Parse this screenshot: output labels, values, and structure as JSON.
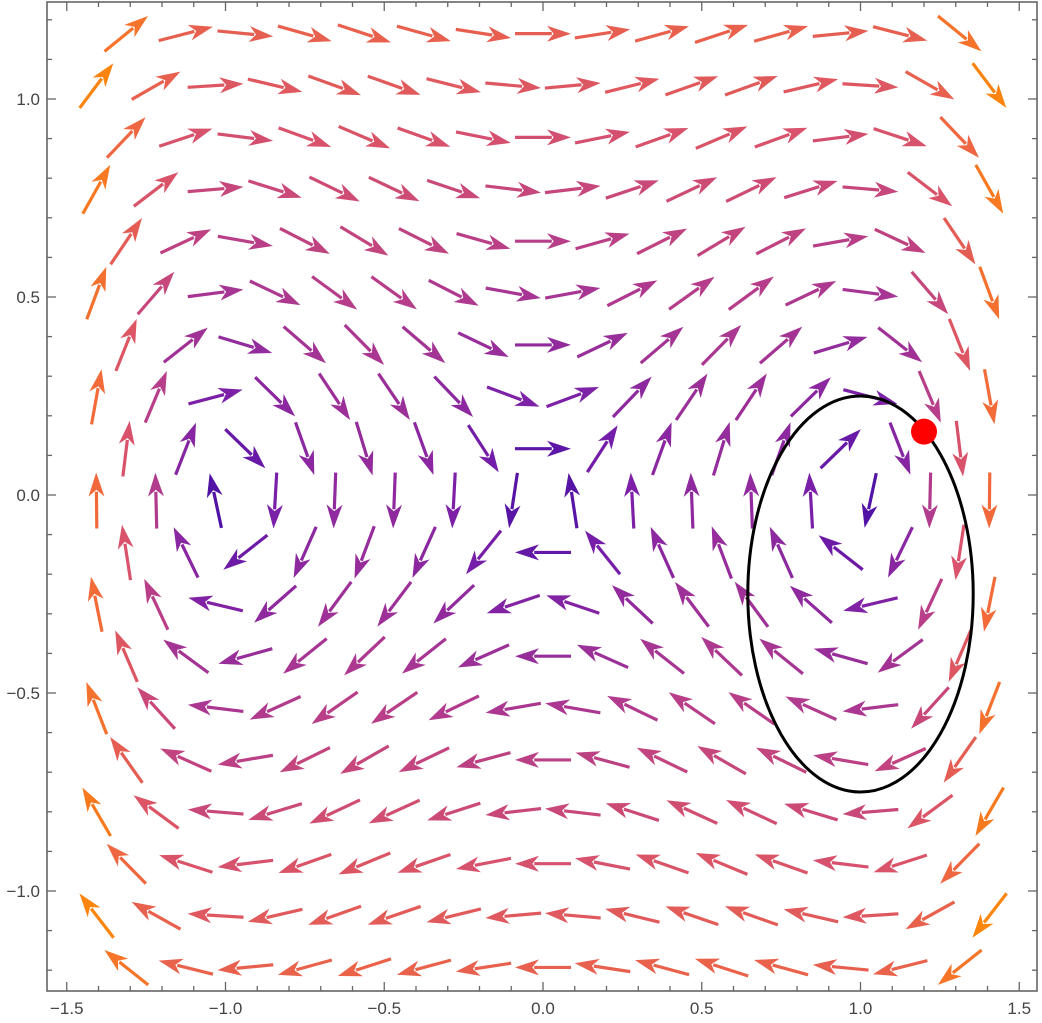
{
  "chart_data": {
    "type": "vector-field",
    "title": "",
    "xlabel": "",
    "ylabel": "",
    "field": {
      "dx": "y",
      "dy": "x - x^3"
    },
    "xlim": [
      -1.56,
      1.56
    ],
    "ylim": [
      -1.25,
      1.25
    ],
    "grid": false,
    "x_ticks": [
      -1.5,
      -1.0,
      -0.5,
      0.0,
      0.5,
      1.0,
      1.5
    ],
    "x_tick_labels": [
      "−1.5",
      "−1.0",
      "−0.5",
      "0.0",
      "0.5",
      "1.0",
      "1.5"
    ],
    "y_ticks": [
      -1.0,
      -0.5,
      0.0,
      0.5,
      1.0
    ],
    "y_tick_labels": [
      "−1.0",
      "−0.5",
      "0.0",
      "0.5",
      "1.0"
    ],
    "color_by": "magnitude",
    "color_scale": [
      "#3a0ca3",
      "#7a1fa8",
      "#b03a8e",
      "#d9536a",
      "#f26a3a",
      "#ff8c00",
      "#ffc107"
    ],
    "arrow_layout": {
      "row_spacing": 0.131,
      "col_spacing": 0.1875,
      "staggered_rows": true
    },
    "overlays": [
      {
        "type": "ellipse",
        "center": [
          1.0,
          -0.25
        ],
        "rx": 0.355,
        "ry": 0.5,
        "stroke": "#000000",
        "stroke_width": 3
      },
      {
        "type": "point",
        "x": 1.2,
        "y": 0.16,
        "color": "#ff0000",
        "radius": 13
      }
    ],
    "equilibria": [
      [
        -1,
        0
      ],
      [
        0,
        0
      ],
      [
        1,
        0
      ]
    ]
  }
}
